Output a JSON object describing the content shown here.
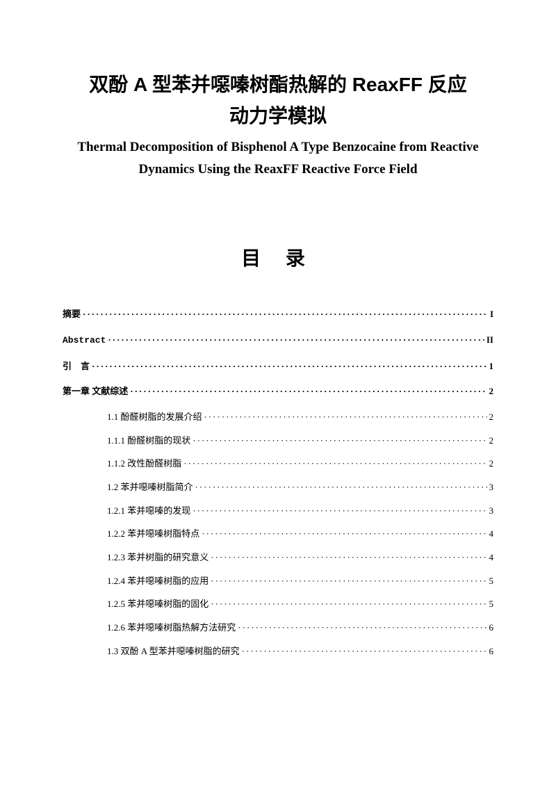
{
  "title_cn_line1": "双酚 A 型苯并噁嗪树酯热解的 ReaxFF 反应",
  "title_cn_line2": "动力学模拟",
  "title_en": "Thermal Decomposition of Bisphenol A Type Benzocaine from Reactive Dynamics Using the ReaxFF Reactive Force Field",
  "toc_heading": "目 录",
  "toc": [
    {
      "label": "摘要",
      "page": "I",
      "bold": true,
      "indent": 0
    },
    {
      "label": "Abstract",
      "page": "II",
      "bold": true,
      "indent": 0,
      "abs": true
    },
    {
      "label": "引　言",
      "page": "1",
      "bold": true,
      "indent": 0,
      "spaced": true
    },
    {
      "label": "第一章  文献综述",
      "page": "2",
      "bold": true,
      "indent": 0
    },
    {
      "label": "1.1  酚醛树脂的发展介绍",
      "page": "2",
      "indent": 1
    },
    {
      "label": "1.1.1  酚醛树脂的现状",
      "page": "2",
      "indent": 1
    },
    {
      "label": "1.1.2  改性酚醛树脂",
      "page": "2",
      "indent": 1
    },
    {
      "label": "1.2  苯并噁嗪树脂简介",
      "page": "3",
      "indent": 1
    },
    {
      "label": "1.2.1  苯并噁嗪的发现",
      "page": "3",
      "indent": 1
    },
    {
      "label": "1.2.2  苯并噁嗪树脂特点",
      "page": "4",
      "indent": 1
    },
    {
      "label": "1.2.3  苯并树脂的研究意义",
      "page": "4",
      "indent": 1
    },
    {
      "label": "1.2.4  苯并噁嗪树脂的应用",
      "page": "5",
      "indent": 1
    },
    {
      "label": "1.2.5  苯并噁嗪树脂的固化",
      "page": "5",
      "indent": 1
    },
    {
      "label": "1.2.6  苯并噁嗪树脂热解方法研究",
      "page": "6",
      "indent": 1
    },
    {
      "label": "1.3  双酚 A 型苯并噁嗪树脂的研究",
      "page": "6",
      "indent": 1
    }
  ]
}
